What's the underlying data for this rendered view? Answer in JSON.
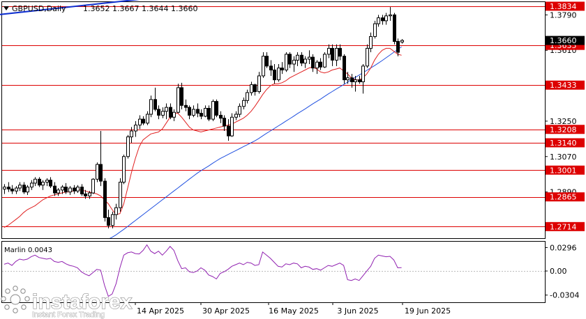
{
  "header": {
    "symbol": "GBPUSD,Daily",
    "ohlc": "1.3652 1.3667 1.3644 1.3660"
  },
  "watermark": {
    "brand": "instaforex",
    "tagline": "Instant Forex Trading"
  },
  "colors": {
    "level": "#dd0000",
    "ma_fast": "#e02020",
    "ma_slow": "#2050e0",
    "trendline": "#1030d0",
    "marlin": "#9020b0",
    "candle_up_body": "#ffffff",
    "candle_down_body": "#000000"
  },
  "chart_data": [
    {
      "type": "candlestick",
      "title": "GBPUSD,Daily",
      "ylim": [
        1.2655,
        1.3855
      ],
      "current_price": "1.3660",
      "y_ticks": [
        "1.3790",
        "1.3610",
        "1.3250",
        "1.3070",
        "1.2890"
      ],
      "level_labels": [
        "1.3834",
        "1.3635",
        "1.3433",
        "1.3208",
        "1.3140",
        "1.3001",
        "1.2865",
        "1.2714"
      ],
      "levels": [
        1.3834,
        1.3635,
        1.3433,
        1.3208,
        1.314,
        1.3001,
        1.2865,
        1.2714
      ],
      "x_ticks": [
        "14 Apr 2025",
        "30 Apr 2025",
        "16 May 2025",
        "3 Jun 2025",
        "19 Jun 2025"
      ],
      "ohlc": [
        [
          1.2905,
          1.293,
          1.288,
          1.2915
        ],
        [
          1.2915,
          1.294,
          1.289,
          1.2905
        ],
        [
          1.2905,
          1.2925,
          1.288,
          1.2895
        ],
        [
          1.2895,
          1.292,
          1.288,
          1.291
        ],
        [
          1.291,
          1.294,
          1.2895,
          1.2925
        ],
        [
          1.2925,
          1.294,
          1.288,
          1.289
        ],
        [
          1.289,
          1.2925,
          1.2875,
          1.2915
        ],
        [
          1.2915,
          1.295,
          1.29,
          1.2935
        ],
        [
          1.2935,
          1.2965,
          1.292,
          1.2955
        ],
        [
          1.2955,
          1.2965,
          1.2915,
          1.2925
        ],
        [
          1.2925,
          1.295,
          1.29,
          1.294
        ],
        [
          1.294,
          1.296,
          1.292,
          1.295
        ],
        [
          1.295,
          1.2965,
          1.291,
          1.292
        ],
        [
          1.292,
          1.294,
          1.287,
          1.2885
        ],
        [
          1.2885,
          1.291,
          1.287,
          1.29
        ],
        [
          1.29,
          1.2925,
          1.288,
          1.2915
        ],
        [
          1.2915,
          1.2935,
          1.288,
          1.289
        ],
        [
          1.289,
          1.292,
          1.2875,
          1.291
        ],
        [
          1.291,
          1.2925,
          1.288,
          1.2895
        ],
        [
          1.2895,
          1.2925,
          1.2885,
          1.2915
        ],
        [
          1.2915,
          1.293,
          1.287,
          1.288
        ],
        [
          1.288,
          1.29,
          1.2855,
          1.287
        ],
        [
          1.287,
          1.2895,
          1.2855,
          1.2885
        ],
        [
          1.2885,
          1.296,
          1.288,
          1.2955
        ],
        [
          1.2955,
          1.304,
          1.294,
          1.303
        ],
        [
          1.303,
          1.32,
          1.292,
          1.2945
        ],
        [
          1.2945,
          1.296,
          1.274,
          1.276
        ],
        [
          1.276,
          1.28,
          1.2705,
          1.272
        ],
        [
          1.272,
          1.279,
          1.2705,
          1.2775
        ],
        [
          1.2775,
          1.283,
          1.275,
          1.281
        ],
        [
          1.281,
          1.296,
          1.279,
          1.294
        ],
        [
          1.294,
          1.308,
          1.293,
          1.307
        ],
        [
          1.307,
          1.318,
          1.306,
          1.317
        ],
        [
          1.317,
          1.322,
          1.314,
          1.32
        ],
        [
          1.32,
          1.325,
          1.317,
          1.323
        ],
        [
          1.323,
          1.328,
          1.321,
          1.326
        ],
        [
          1.326,
          1.3275,
          1.323,
          1.324
        ],
        [
          1.324,
          1.33,
          1.323,
          1.3285
        ],
        [
          1.3285,
          1.338,
          1.327,
          1.336
        ],
        [
          1.336,
          1.342,
          1.33,
          1.331
        ],
        [
          1.331,
          1.333,
          1.326,
          1.328
        ],
        [
          1.328,
          1.332,
          1.3265,
          1.33
        ],
        [
          1.33,
          1.334,
          1.326,
          1.332
        ],
        [
          1.332,
          1.334,
          1.326,
          1.327
        ],
        [
          1.327,
          1.331,
          1.325,
          1.3295
        ],
        [
          1.3295,
          1.344,
          1.329,
          1.342
        ],
        [
          1.342,
          1.3445,
          1.331,
          1.333
        ],
        [
          1.333,
          1.336,
          1.33,
          1.332
        ],
        [
          1.332,
          1.333,
          1.326,
          1.328
        ],
        [
          1.328,
          1.333,
          1.327,
          1.331
        ],
        [
          1.331,
          1.334,
          1.327,
          1.329
        ],
        [
          1.329,
          1.331,
          1.326,
          1.3275
        ],
        [
          1.3275,
          1.333,
          1.327,
          1.3315
        ],
        [
          1.3315,
          1.333,
          1.325,
          1.326
        ],
        [
          1.326,
          1.336,
          1.325,
          1.335
        ],
        [
          1.335,
          1.336,
          1.327,
          1.328
        ],
        [
          1.328,
          1.33,
          1.324,
          1.3265
        ],
        [
          1.3265,
          1.328,
          1.32,
          1.3225
        ],
        [
          1.3225,
          1.326,
          1.315,
          1.3175
        ],
        [
          1.3175,
          1.329,
          1.317,
          1.327
        ],
        [
          1.327,
          1.33,
          1.3255,
          1.3285
        ],
        [
          1.3285,
          1.334,
          1.327,
          1.3325
        ],
        [
          1.3325,
          1.337,
          1.331,
          1.3355
        ],
        [
          1.3355,
          1.341,
          1.334,
          1.3395
        ],
        [
          1.3395,
          1.345,
          1.338,
          1.3435
        ],
        [
          1.3435,
          1.344,
          1.338,
          1.34
        ],
        [
          1.34,
          1.35,
          1.339,
          1.348
        ],
        [
          1.348,
          1.36,
          1.347,
          1.358
        ],
        [
          1.358,
          1.36,
          1.352,
          1.353
        ],
        [
          1.353,
          1.356,
          1.348,
          1.351
        ],
        [
          1.351,
          1.354,
          1.344,
          1.346
        ],
        [
          1.346,
          1.354,
          1.345,
          1.352
        ],
        [
          1.352,
          1.355,
          1.349,
          1.351
        ],
        [
          1.351,
          1.36,
          1.35,
          1.359
        ],
        [
          1.359,
          1.36,
          1.352,
          1.354
        ],
        [
          1.354,
          1.358,
          1.35,
          1.356
        ],
        [
          1.356,
          1.36,
          1.353,
          1.3585
        ],
        [
          1.3585,
          1.36,
          1.353,
          1.3545
        ],
        [
          1.3545,
          1.358,
          1.352,
          1.3565
        ],
        [
          1.3565,
          1.361,
          1.354,
          1.3575
        ],
        [
          1.3575,
          1.359,
          1.35,
          1.352
        ],
        [
          1.352,
          1.356,
          1.349,
          1.355
        ],
        [
          1.355,
          1.357,
          1.351,
          1.3525
        ],
        [
          1.3525,
          1.36,
          1.352,
          1.359
        ],
        [
          1.359,
          1.364,
          1.357,
          1.362
        ],
        [
          1.362,
          1.364,
          1.353,
          1.356
        ],
        [
          1.356,
          1.364,
          1.353,
          1.362
        ],
        [
          1.362,
          1.364,
          1.356,
          1.358
        ],
        [
          1.358,
          1.359,
          1.344,
          1.346
        ],
        [
          1.346,
          1.35,
          1.344,
          1.347
        ],
        [
          1.347,
          1.349,
          1.342,
          1.345
        ],
        [
          1.345,
          1.348,
          1.34,
          1.346
        ],
        [
          1.346,
          1.348,
          1.344,
          1.345
        ],
        [
          1.345,
          1.354,
          1.339,
          1.353
        ],
        [
          1.353,
          1.364,
          1.352,
          1.362
        ],
        [
          1.362,
          1.37,
          1.36,
          1.368
        ],
        [
          1.368,
          1.376,
          1.367,
          1.3745
        ],
        [
          1.3745,
          1.379,
          1.373,
          1.3775
        ],
        [
          1.3775,
          1.379,
          1.374,
          1.376
        ],
        [
          1.376,
          1.38,
          1.374,
          1.3785
        ],
        [
          1.3785,
          1.383,
          1.376,
          1.379
        ],
        [
          1.379,
          1.38,
          1.364,
          1.3655
        ],
        [
          1.3655,
          1.367,
          1.358,
          1.36
        ],
        [
          1.3652,
          1.3667,
          1.3644,
          1.366
        ]
      ],
      "ma_fast": [
        1.271,
        1.272,
        1.2735,
        1.275,
        1.2765,
        1.2785,
        1.28,
        1.281,
        1.282,
        1.2835,
        1.285,
        1.286,
        1.287,
        1.2875,
        1.288,
        1.2885,
        1.289,
        1.289,
        1.2895,
        1.29,
        1.29,
        1.2895,
        1.289,
        1.2885,
        1.288,
        1.287,
        1.285,
        1.283,
        1.28,
        1.2775,
        1.278,
        1.283,
        1.291,
        1.299,
        1.306,
        1.312,
        1.3155,
        1.317,
        1.3185,
        1.319,
        1.3195,
        1.321,
        1.324,
        1.327,
        1.329,
        1.329,
        1.327,
        1.3245,
        1.322,
        1.3205,
        1.32,
        1.3195,
        1.32,
        1.3205,
        1.321,
        1.3215,
        1.322,
        1.3225,
        1.323,
        1.3235,
        1.3245,
        1.3255,
        1.3265,
        1.328,
        1.33,
        1.3325,
        1.3355,
        1.3385,
        1.341,
        1.343,
        1.344,
        1.344,
        1.3445,
        1.3455,
        1.347,
        1.348,
        1.349,
        1.35,
        1.351,
        1.352,
        1.3525,
        1.3515,
        1.35,
        1.3495,
        1.35,
        1.351,
        1.3515,
        1.352,
        1.3505,
        1.349,
        1.347,
        1.346,
        1.346,
        1.347,
        1.349,
        1.352,
        1.356,
        1.359,
        1.361,
        1.362,
        1.362,
        1.3605,
        1.359,
        1.3585
      ],
      "ma_slow": [
        1.2385,
        1.2395,
        1.2405,
        1.2415,
        1.2425,
        1.2435,
        1.2445,
        1.2455,
        1.2465,
        1.2475,
        1.2485,
        1.2495,
        1.2505,
        1.2515,
        1.2525,
        1.2535,
        1.2545,
        1.2555,
        1.2565,
        1.2575,
        1.2585,
        1.2595,
        1.2605,
        1.2615,
        1.2625,
        1.2635,
        1.2642,
        1.265,
        1.266,
        1.2672,
        1.2686,
        1.27,
        1.2715,
        1.273,
        1.2745,
        1.276,
        1.2775,
        1.279,
        1.2805,
        1.282,
        1.2835,
        1.285,
        1.2865,
        1.288,
        1.2895,
        1.291,
        1.2925,
        1.294,
        1.2955,
        1.297,
        1.2985,
        1.2998,
        1.301,
        1.3022,
        1.3035,
        1.3048,
        1.306,
        1.307,
        1.308,
        1.309,
        1.31,
        1.311,
        1.312,
        1.313,
        1.314,
        1.315,
        1.3162,
        1.3175,
        1.3188,
        1.32,
        1.3212,
        1.3225,
        1.3237,
        1.325,
        1.3262,
        1.3275,
        1.3288,
        1.33,
        1.3312,
        1.3325,
        1.3338,
        1.335,
        1.3362,
        1.3375,
        1.3388,
        1.34,
        1.3412,
        1.3424,
        1.3436,
        1.3448,
        1.346,
        1.3472,
        1.3484,
        1.3496,
        1.3508,
        1.352,
        1.3532,
        1.3545,
        1.3558,
        1.3572,
        1.3586,
        1.36,
        1.3614,
        1.3628
      ],
      "trendline": {
        "start": [
          -2,
          1.379
        ],
        "end": [
          45,
          1.389
        ]
      }
    },
    {
      "type": "line",
      "title": "Marlin 0.0043",
      "ylim": [
        -0.0395,
        0.037
      ],
      "y_ticks": [
        "0.0296",
        "0.00",
        "-0.0304"
      ],
      "values": [
        0.0085,
        0.01,
        0.007,
        0.012,
        0.015,
        0.014,
        0.015,
        0.018,
        0.02,
        0.017,
        0.016,
        0.015,
        0.016,
        0.012,
        0.011,
        0.012,
        0.009,
        0.007,
        0.006,
        0.004,
        -0.001,
        -0.004,
        -0.006,
        -0.002,
        0.002,
        0.001,
        -0.018,
        -0.032,
        -0.029,
        -0.016,
        0.004,
        0.02,
        0.023,
        0.024,
        0.022,
        0.0215,
        0.026,
        0.033,
        0.025,
        0.022,
        0.025,
        0.02,
        0.025,
        0.031,
        0.026,
        0.013,
        0.003,
        0.004,
        -0.001,
        -0.002,
        0.0,
        0.004,
        0.001,
        -0.005,
        -0.007,
        -0.01,
        -0.003,
        -0.001,
        0.002,
        0.006,
        0.008,
        0.01,
        0.008,
        0.011,
        0.01,
        0.007,
        0.008,
        0.024,
        0.02,
        0.016,
        0.011,
        0.006,
        0.005,
        0.009,
        0.008,
        0.01,
        0.009,
        0.004,
        0.006,
        0.005,
        0.002,
        0.003,
        0.001,
        0.004,
        0.007,
        0.006,
        0.008,
        0.01,
        0.007,
        -0.011,
        -0.012,
        -0.01,
        -0.012,
        -0.006,
        0.0,
        0.006,
        0.016,
        0.02,
        0.019,
        0.018,
        0.0185,
        0.014,
        0.004,
        0.0043
      ]
    }
  ]
}
